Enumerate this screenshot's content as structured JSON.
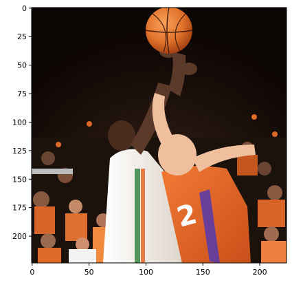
{
  "image_axes": {
    "x_ticks": [
      {
        "value": 0,
        "label": "0"
      },
      {
        "value": 50,
        "label": "50"
      },
      {
        "value": 100,
        "label": "100"
      },
      {
        "value": 150,
        "label": "150"
      },
      {
        "value": 200,
        "label": "200"
      }
    ],
    "y_ticks": [
      {
        "value": 0,
        "label": "0"
      },
      {
        "value": 25,
        "label": "25"
      },
      {
        "value": 50,
        "label": "50"
      },
      {
        "value": 75,
        "label": "75"
      },
      {
        "value": 100,
        "label": "100"
      },
      {
        "value": 125,
        "label": "125"
      },
      {
        "value": 150,
        "label": "150"
      },
      {
        "value": 175,
        "label": "175"
      },
      {
        "value": 200,
        "label": "200"
      }
    ],
    "xlim": [
      0,
      224
    ],
    "ylim": [
      0,
      224
    ],
    "y_inverted": true
  },
  "photo": {
    "description_colors": {
      "background": "#140c08",
      "white_jersey": "#f4eee6",
      "orange_jersey": "#e0601e",
      "purple_trim": "#6a3f9a",
      "ball": "#e3742c",
      "skin_dark": "#5b3a2a",
      "skin_light": "#efbf9e"
    },
    "jersey_number": "2"
  }
}
